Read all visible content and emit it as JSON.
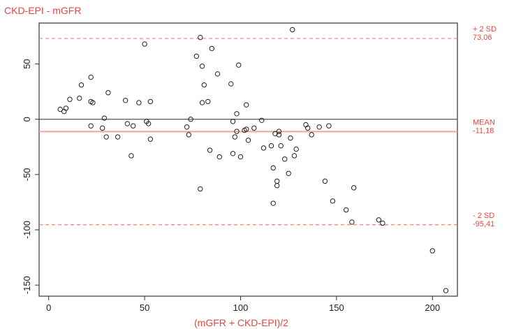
{
  "chart_data": {
    "type": "scatter",
    "title": "CKD-EPI - mGFR",
    "xlabel": "(mGFR + CKD-EPI)/2",
    "ylabel": "",
    "xlim": [
      -5,
      213
    ],
    "ylim": [
      -160,
      87
    ],
    "xticks": [
      0,
      50,
      100,
      150,
      200
    ],
    "yticks": [
      -150,
      -100,
      -50,
      0,
      50
    ],
    "grid": false,
    "reference_lines": [
      {
        "y": 73.06,
        "style": "dashed",
        "color": "#f08070",
        "label_lines": [
          "+ 2 SD",
          "73,06"
        ]
      },
      {
        "y": -11.18,
        "style": "solid",
        "color": "#f4a0a0",
        "label_lines": [
          "MEAN",
          "-11,18"
        ]
      },
      {
        "y": -95.41,
        "style": "dashed",
        "color": "#f08070",
        "label_lines": [
          "- 2 SD",
          "-95,41"
        ]
      },
      {
        "y": 0,
        "style": "solid",
        "color": "#555555",
        "label_lines": []
      }
    ],
    "points": [
      {
        "x": 6,
        "y": 9
      },
      {
        "x": 8,
        "y": 7
      },
      {
        "x": 9,
        "y": 10
      },
      {
        "x": 11,
        "y": 18
      },
      {
        "x": 16,
        "y": 19
      },
      {
        "x": 17,
        "y": 31
      },
      {
        "x": 22,
        "y": 38
      },
      {
        "x": 22,
        "y": 16
      },
      {
        "x": 23,
        "y": 15
      },
      {
        "x": 22,
        "y": -6
      },
      {
        "x": 28,
        "y": -8
      },
      {
        "x": 29,
        "y": 1
      },
      {
        "x": 30,
        "y": -16
      },
      {
        "x": 31,
        "y": 24
      },
      {
        "x": 36,
        "y": -16
      },
      {
        "x": 40,
        "y": 17
      },
      {
        "x": 41,
        "y": -4
      },
      {
        "x": 43,
        "y": -33
      },
      {
        "x": 44,
        "y": -6
      },
      {
        "x": 47,
        "y": 15
      },
      {
        "x": 50,
        "y": 68
      },
      {
        "x": 51,
        "y": -2
      },
      {
        "x": 52,
        "y": -4
      },
      {
        "x": 53,
        "y": -18
      },
      {
        "x": 53,
        "y": 16
      },
      {
        "x": 72,
        "y": -7
      },
      {
        "x": 73,
        "y": -14
      },
      {
        "x": 74,
        "y": 0
      },
      {
        "x": 77,
        "y": 57
      },
      {
        "x": 79,
        "y": 74
      },
      {
        "x": 79,
        "y": -63
      },
      {
        "x": 80,
        "y": 48
      },
      {
        "x": 80,
        "y": 15
      },
      {
        "x": 81,
        "y": 31
      },
      {
        "x": 83,
        "y": 16
      },
      {
        "x": 84,
        "y": -28
      },
      {
        "x": 85,
        "y": 64
      },
      {
        "x": 88,
        "y": 41
      },
      {
        "x": 89,
        "y": -34
      },
      {
        "x": 95,
        "y": 32
      },
      {
        "x": 96,
        "y": -2
      },
      {
        "x": 96,
        "y": -31
      },
      {
        "x": 97,
        "y": -16
      },
      {
        "x": 98,
        "y": -11
      },
      {
        "x": 98,
        "y": 5
      },
      {
        "x": 99,
        "y": 49
      },
      {
        "x": 100,
        "y": -34
      },
      {
        "x": 102,
        "y": -10
      },
      {
        "x": 103,
        "y": 13
      },
      {
        "x": 103,
        "y": -9
      },
      {
        "x": 104,
        "y": -19
      },
      {
        "x": 107,
        "y": -8
      },
      {
        "x": 111,
        "y": -1
      },
      {
        "x": 112,
        "y": -26
      },
      {
        "x": 116,
        "y": -24
      },
      {
        "x": 117,
        "y": -44
      },
      {
        "x": 117,
        "y": -76
      },
      {
        "x": 118,
        "y": -13
      },
      {
        "x": 119,
        "y": -60
      },
      {
        "x": 119,
        "y": -56
      },
      {
        "x": 120,
        "y": -11
      },
      {
        "x": 120,
        "y": -14
      },
      {
        "x": 121,
        "y": -24
      },
      {
        "x": 123,
        "y": -36
      },
      {
        "x": 125,
        "y": -49
      },
      {
        "x": 126,
        "y": -17
      },
      {
        "x": 127,
        "y": 81
      },
      {
        "x": 128,
        "y": -33
      },
      {
        "x": 129,
        "y": -27
      },
      {
        "x": 134,
        "y": -5
      },
      {
        "x": 135,
        "y": -8
      },
      {
        "x": 137,
        "y": -14
      },
      {
        "x": 141,
        "y": -7
      },
      {
        "x": 144,
        "y": -56
      },
      {
        "x": 146,
        "y": -6
      },
      {
        "x": 148,
        "y": -74
      },
      {
        "x": 155,
        "y": -82
      },
      {
        "x": 158,
        "y": -93
      },
      {
        "x": 159,
        "y": -62
      },
      {
        "x": 172,
        "y": -91
      },
      {
        "x": 174,
        "y": -94
      },
      {
        "x": 200,
        "y": -119
      },
      {
        "x": 207,
        "y": -155
      }
    ],
    "colors": {
      "title": "#e8453c",
      "xlabel": "#e8453c",
      "points": "#222222",
      "frame": "#333333"
    }
  }
}
